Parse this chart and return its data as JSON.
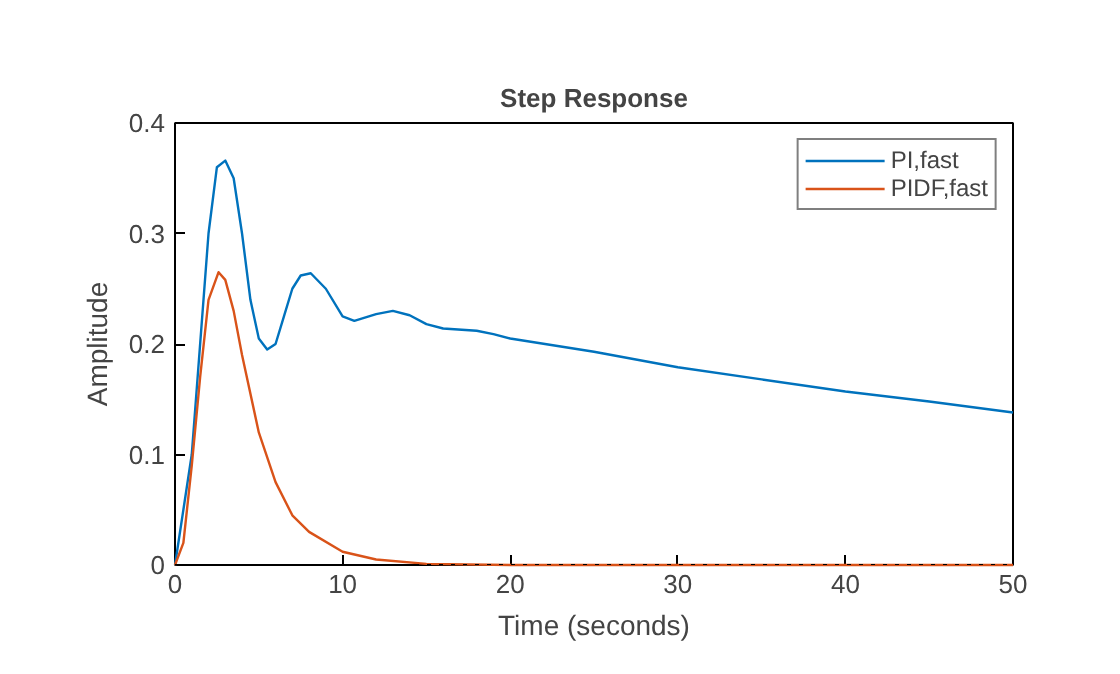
{
  "chart_data": {
    "type": "line",
    "title": "Step Response",
    "xlabel": "Time (seconds)",
    "ylabel": "Amplitude",
    "xlim": [
      0,
      50
    ],
    "ylim": [
      0,
      0.4
    ],
    "xticks": [
      0,
      10,
      20,
      30,
      40,
      50
    ],
    "yticks": [
      0,
      0.1,
      0.2,
      0.3,
      0.4
    ],
    "grid": false,
    "legend": "top right",
    "line_style": "solid",
    "marker": "none",
    "ref_lines": [
      {
        "axis": "y",
        "value": 0,
        "color": "#000000",
        "line_style": "dotted"
      }
    ],
    "series": [
      {
        "name": "PI,fast",
        "color": "#0072bd",
        "x": [
          0,
          1,
          2,
          2.5,
          3,
          3.5,
          4,
          4.5,
          5,
          5.5,
          6,
          6.5,
          7,
          7.5,
          8.1,
          9,
          10,
          10.7,
          12,
          13,
          14,
          15,
          16,
          18,
          19,
          20,
          25,
          30,
          35,
          40,
          45,
          50
        ],
        "values": [
          0,
          0.1,
          0.3,
          0.36,
          0.366,
          0.35,
          0.3,
          0.24,
          0.205,
          0.195,
          0.2,
          0.225,
          0.25,
          0.262,
          0.264,
          0.25,
          0.225,
          0.221,
          0.227,
          0.23,
          0.226,
          0.218,
          0.214,
          0.212,
          0.209,
          0.205,
          0.193,
          0.179,
          0.168,
          0.157,
          0.148,
          0.138
        ]
      },
      {
        "name": "PIDF,fast",
        "color": "#d95319",
        "x": [
          0,
          0.5,
          1,
          1.5,
          2,
          2.6,
          3,
          3.5,
          4,
          5,
          6,
          7,
          8,
          10,
          12,
          15,
          20,
          30,
          40,
          50
        ],
        "values": [
          0,
          0.02,
          0.09,
          0.17,
          0.24,
          0.265,
          0.258,
          0.23,
          0.19,
          0.12,
          0.075,
          0.045,
          0.03,
          0.012,
          0.005,
          0.001,
          0,
          0,
          0,
          0
        ]
      }
    ]
  }
}
